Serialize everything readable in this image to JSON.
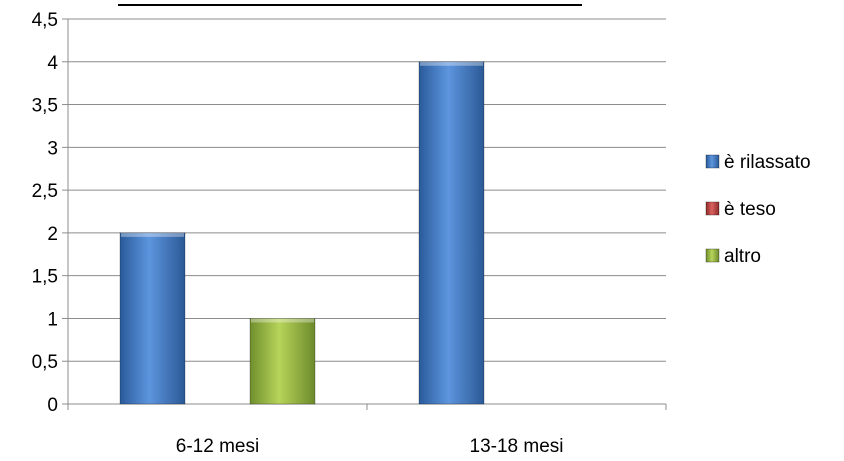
{
  "chart_data": {
    "type": "bar",
    "title": "",
    "xlabel": "",
    "ylabel": "",
    "categories": [
      "6-12 mesi",
      "13-18 mesi"
    ],
    "series": [
      {
        "name": "è rilassato",
        "values": [
          2,
          4
        ],
        "color": "#4f81bd"
      },
      {
        "name": "è teso",
        "values": [
          0,
          0
        ],
        "color": "#c0504d"
      },
      {
        "name": "altro",
        "values": [
          1,
          0
        ],
        "color": "#9bbb59"
      }
    ],
    "ylim": [
      0,
      4.5
    ],
    "yticks": [
      "0",
      "0,5",
      "1",
      "1,5",
      "2",
      "2,5",
      "3",
      "3,5",
      "4",
      "4,5"
    ],
    "grid": true,
    "legend_position": "right"
  }
}
